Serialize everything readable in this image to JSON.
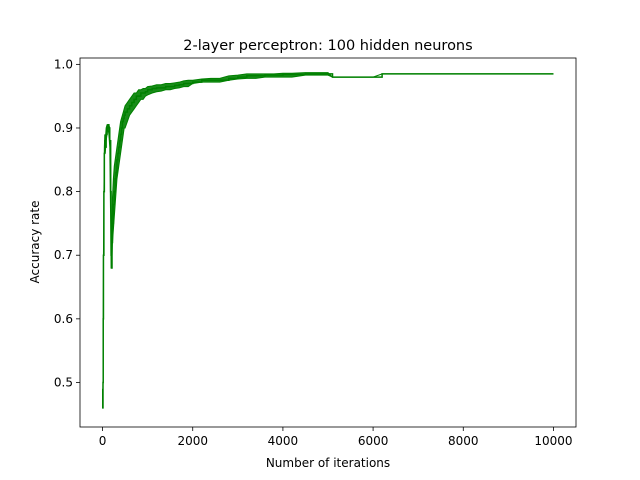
{
  "chart_data": {
    "type": "line",
    "title": "2-layer perceptron: 100 hidden neurons",
    "xlabel": "Number of iterations",
    "ylabel": "Accuracy rate",
    "xlim": [
      -500,
      10500
    ],
    "ylim": [
      0.43,
      1.01
    ],
    "xticks": [
      0,
      2000,
      4000,
      6000,
      8000,
      10000
    ],
    "xtick_labels": [
      "0",
      "2000",
      "4000",
      "6000",
      "8000",
      "10000"
    ],
    "yticks": [
      0.5,
      0.6,
      0.7,
      0.8,
      0.9,
      1.0
    ],
    "ytick_labels": [
      "0.5",
      "0.6",
      "0.7",
      "0.8",
      "0.9",
      "1.0"
    ],
    "grid": false,
    "legend": "none",
    "series": [
      {
        "color": "#008000",
        "x": [
          0,
          5,
          10,
          15,
          20,
          30,
          40,
          50,
          60,
          80,
          100,
          120,
          140,
          160,
          180,
          190,
          200,
          210,
          220,
          240,
          260,
          280,
          300,
          320,
          340,
          360,
          380,
          400,
          420,
          440,
          460,
          480,
          500,
          550,
          600,
          650,
          700,
          750,
          800,
          850,
          900,
          950,
          1000,
          1100,
          1200,
          1300,
          1400,
          1500,
          1600,
          1700,
          1800,
          1900,
          2000,
          2200,
          2400,
          2600,
          2800,
          3000,
          3200,
          3400,
          3600,
          3800,
          4000,
          4200,
          4500,
          5000,
          5100,
          5200,
          5500,
          6000,
          6200,
          7000,
          8000,
          9000,
          10000
        ],
        "y": [
          0.49,
          0.46,
          0.5,
          0.6,
          0.7,
          0.8,
          0.86,
          0.88,
          0.87,
          0.89,
          0.9,
          0.905,
          0.9,
          0.88,
          0.8,
          0.7,
          0.68,
          0.72,
          0.75,
          0.78,
          0.8,
          0.82,
          0.83,
          0.85,
          0.86,
          0.87,
          0.88,
          0.89,
          0.9,
          0.91,
          0.915,
          0.92,
          0.925,
          0.93,
          0.935,
          0.94,
          0.945,
          0.95,
          0.95,
          0.955,
          0.955,
          0.957,
          0.96,
          0.962,
          0.963,
          0.963,
          0.965,
          0.965,
          0.967,
          0.968,
          0.97,
          0.97,
          0.972,
          0.975,
          0.975,
          0.975,
          0.978,
          0.98,
          0.982,
          0.982,
          0.983,
          0.983,
          0.984,
          0.984,
          0.985,
          0.985,
          0.98,
          0.98,
          0.98,
          0.98,
          0.985,
          0.985,
          0.985,
          0.985,
          0.985
        ],
        "band_lower": [
          0.49,
          0.46,
          0.5,
          0.6,
          0.7,
          0.8,
          0.86,
          0.87,
          0.86,
          0.88,
          0.89,
          0.9,
          0.89,
          0.87,
          0.75,
          0.68,
          0.68,
          0.7,
          0.72,
          0.74,
          0.76,
          0.78,
          0.8,
          0.82,
          0.83,
          0.84,
          0.85,
          0.86,
          0.87,
          0.88,
          0.89,
          0.9,
          0.9,
          0.91,
          0.92,
          0.925,
          0.93,
          0.935,
          0.94,
          0.945,
          0.945,
          0.95,
          0.952,
          0.955,
          0.957,
          0.958,
          0.96,
          0.96,
          0.962,
          0.963,
          0.965,
          0.965,
          0.97,
          0.972,
          0.972,
          0.972,
          0.975,
          0.977,
          0.978,
          0.978,
          0.98,
          0.98,
          0.98,
          0.98,
          0.983,
          0.983,
          0.98,
          0.98,
          0.98,
          0.98,
          0.985,
          0.985,
          0.985,
          0.985,
          0.985
        ],
        "band_upper": [
          0.49,
          0.46,
          0.5,
          0.6,
          0.7,
          0.8,
          0.87,
          0.89,
          0.88,
          0.9,
          0.905,
          0.905,
          0.905,
          0.9,
          0.84,
          0.74,
          0.7,
          0.76,
          0.79,
          0.82,
          0.84,
          0.85,
          0.86,
          0.87,
          0.88,
          0.89,
          0.9,
          0.91,
          0.915,
          0.92,
          0.925,
          0.93,
          0.935,
          0.94,
          0.945,
          0.95,
          0.955,
          0.955,
          0.96,
          0.96,
          0.962,
          0.962,
          0.965,
          0.966,
          0.968,
          0.968,
          0.97,
          0.97,
          0.971,
          0.972,
          0.974,
          0.975,
          0.975,
          0.977,
          0.978,
          0.978,
          0.982,
          0.983,
          0.985,
          0.985,
          0.985,
          0.985,
          0.986,
          0.986,
          0.987,
          0.987,
          0.98,
          0.98,
          0.98,
          0.98,
          0.985,
          0.985,
          0.985,
          0.985,
          0.985
        ]
      }
    ]
  }
}
